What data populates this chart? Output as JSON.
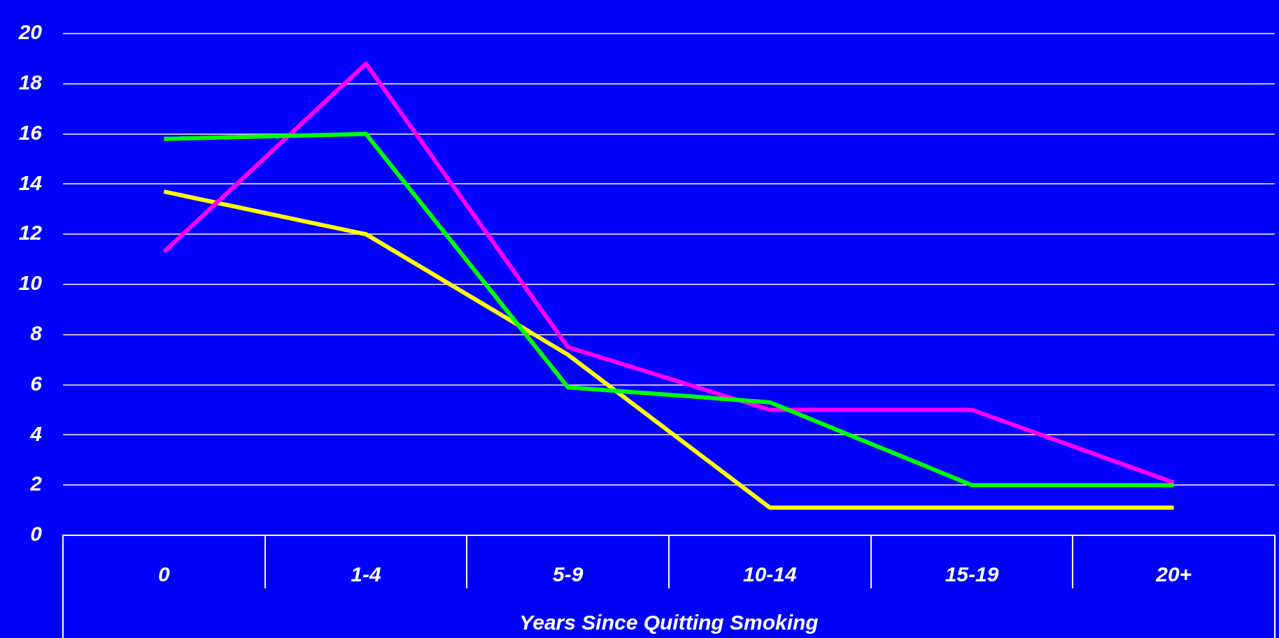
{
  "chart_data": {
    "type": "line",
    "xlabel": "Years Since Quitting Smoking",
    "categories": [
      "0",
      "1-4",
      "5-9",
      "10-14",
      "15-19",
      "20+"
    ],
    "series": [
      {
        "color": "#00ff00",
        "values": [
          15.8,
          16.0,
          5.9,
          5.3,
          2.0,
          2.0
        ]
      },
      {
        "color": "#ff00ff",
        "values": [
          11.3,
          18.8,
          7.5,
          5.0,
          5.0,
          2.1
        ]
      },
      {
        "color": "#ffff00",
        "values": [
          13.7,
          12.0,
          7.2,
          1.1,
          1.1,
          1.1
        ]
      }
    ],
    "ylim": [
      0,
      20
    ],
    "yticks": [
      0,
      2,
      4,
      6,
      8,
      10,
      12,
      14,
      16,
      18,
      20
    ],
    "grid": "y",
    "legend": false,
    "marker": "none",
    "line_style": "solid"
  }
}
